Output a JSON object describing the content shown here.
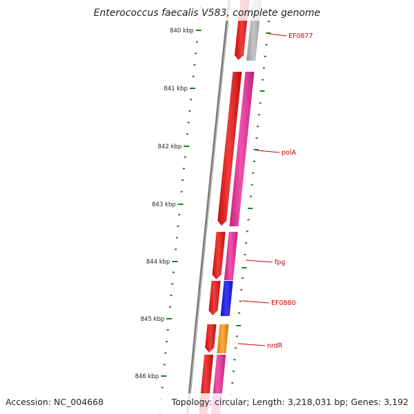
{
  "title": "Enterococcus faecalis V583, complete genome",
  "footer": {
    "accession": "Accession: NC_004668",
    "summary": "Topology: circular; Length: 3,218,031 bp; Genes: 3,192"
  },
  "colors": {
    "backbone": "#7a7a7a",
    "tick": "#1e7a1e",
    "label": "#cc0000",
    "gene_outer": "#ee1111",
    "cds_pink": "#ee2a9a",
    "cds_blue": "#1010ee",
    "cds_orange": "#ff9a10",
    "cds_gray": "#b8b8b8"
  },
  "ticks": [
    {
      "label": "840 kbp"
    },
    {
      "label": "841 kbp"
    },
    {
      "label": "842 kbp"
    },
    {
      "label": "843 kbp"
    },
    {
      "label": "844 kbp"
    },
    {
      "label": "845 kbp"
    },
    {
      "label": "846 kbp"
    }
  ],
  "genes": [
    {
      "name": "EF0877",
      "inner": "gray"
    },
    {
      "name": "polA",
      "inner": "pink"
    },
    {
      "name": "fpg",
      "inner": "pink"
    },
    {
      "name": "EF0880",
      "inner": "blue"
    },
    {
      "name": "nrdR",
      "inner": "orange"
    },
    {
      "name": "",
      "inner": "pink"
    }
  ]
}
